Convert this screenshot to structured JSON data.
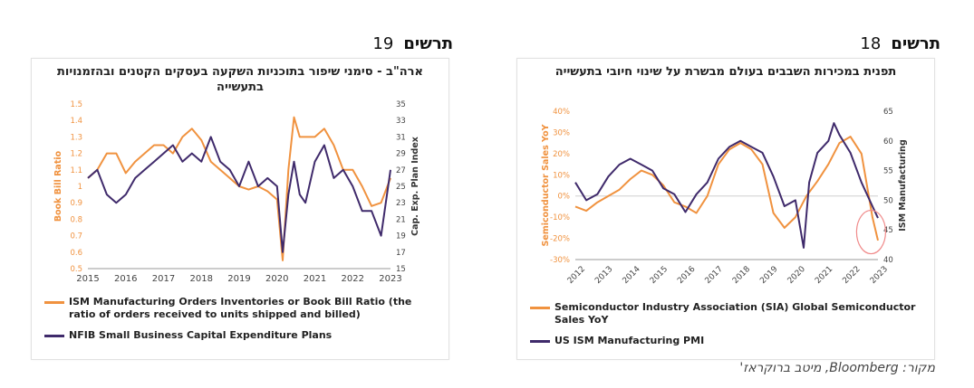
{
  "figures": [
    {
      "label": "תרשים",
      "number": "19",
      "title": "ארה\"ב - סימני שיפור בתוכניות השקעה בעסקים הקטנים ובהזמנויות בתעשייה",
      "legend": [
        "ISM Manufacturing Orders Inventories or Book Bill Ratio (the ratio of orders received to units shipped and billed)",
        "NFIB Small Business Capital Expenditure Plans"
      ]
    },
    {
      "label": "תרשים",
      "number": "18",
      "title": "תפנית במכירות השבבים בעולם מבשרת על שינוי חיובי בתעשייה",
      "legend": [
        "Semiconductor Industry Association (SIA) Global Semiconductor Sales YoY",
        "US ISM Manufacturing PMI"
      ]
    }
  ],
  "source": "מקור: Bloomberg, מיטב ברוקראז'",
  "colors": {
    "orange": "#f0923f",
    "purple": "#3f2a6b",
    "circle": "#f08a8a",
    "axis_orange": "#f0923f"
  },
  "chart_data": [
    {
      "type": "line",
      "x_ticks": [
        "2015",
        "2016",
        "2017",
        "2018",
        "2019",
        "2020",
        "2021",
        "2022",
        "2023"
      ],
      "xlim": [
        2015,
        2023
      ],
      "ylabel": "Book Bill Ratio",
      "ylim": [
        0.5,
        1.5
      ],
      "y_ticks": [
        "0.5",
        "0.6",
        "0.7",
        "0.8",
        "0.9",
        "1",
        "1.1",
        "1.2",
        "1.3",
        "1.4",
        "1.5"
      ],
      "y2label": "Cap. Exp. Plan Index",
      "y2lim": [
        15,
        35
      ],
      "y2_ticks": [
        "15",
        "17",
        "19",
        "21",
        "23",
        "25",
        "27",
        "29",
        "31",
        "33",
        "35"
      ],
      "series": [
        {
          "name": "ISM Manufacturing Orders Inventories or Book Bill Ratio (the ratio of orders received to units shipped and billed)",
          "axis": "left",
          "x": [
            2015.0,
            2015.25,
            2015.5,
            2015.75,
            2016.0,
            2016.25,
            2016.5,
            2016.75,
            2017.0,
            2017.25,
            2017.5,
            2017.75,
            2018.0,
            2018.25,
            2018.5,
            2018.75,
            2019.0,
            2019.25,
            2019.5,
            2019.75,
            2020.0,
            2020.15,
            2020.3,
            2020.45,
            2020.6,
            2020.75,
            2021.0,
            2021.25,
            2021.5,
            2021.75,
            2022.0,
            2022.25,
            2022.5,
            2022.75,
            2023.0
          ],
          "values": [
            1.05,
            1.1,
            1.2,
            1.2,
            1.08,
            1.15,
            1.2,
            1.25,
            1.25,
            1.2,
            1.3,
            1.35,
            1.28,
            1.15,
            1.1,
            1.05,
            1.0,
            0.98,
            1.0,
            0.97,
            0.92,
            0.55,
            1.1,
            1.42,
            1.3,
            1.3,
            1.3,
            1.35,
            1.25,
            1.1,
            1.1,
            1.0,
            0.88,
            0.9,
            1.05
          ]
        },
        {
          "name": "NFIB Small Business Capital Expenditure Plans",
          "axis": "right",
          "x": [
            2015.0,
            2015.25,
            2015.5,
            2015.75,
            2016.0,
            2016.25,
            2016.5,
            2016.75,
            2017.0,
            2017.25,
            2017.5,
            2017.75,
            2018.0,
            2018.25,
            2018.5,
            2018.75,
            2019.0,
            2019.25,
            2019.5,
            2019.75,
            2020.0,
            2020.15,
            2020.3,
            2020.45,
            2020.6,
            2020.75,
            2021.0,
            2021.25,
            2021.5,
            2021.75,
            2022.0,
            2022.25,
            2022.5,
            2022.75,
            2023.0
          ],
          "values": [
            26,
            27,
            24,
            23,
            24,
            26,
            27,
            28,
            29,
            30,
            28,
            29,
            28,
            31,
            28,
            27,
            25,
            28,
            25,
            26,
            25,
            17,
            24,
            28,
            24,
            23,
            28,
            30,
            26,
            27,
            25,
            22,
            22,
            19,
            27
          ]
        }
      ]
    },
    {
      "type": "line",
      "x_ticks": [
        "2012",
        "2013",
        "2014",
        "2015",
        "2016",
        "2017",
        "2018",
        "2019",
        "2020",
        "2021",
        "2022",
        "2023"
      ],
      "xlim": [
        2012,
        2023
      ],
      "ylabel": "Semiconductor Sales YoY",
      "ylim": [
        -30,
        40
      ],
      "y_ticks": [
        "-30%",
        "-20%",
        "-10%",
        "0%",
        "10%",
        "20%",
        "30%",
        "40%"
      ],
      "y2label": "ISM Manufacturing",
      "y2lim": [
        40,
        65
      ],
      "y2_ticks": [
        "40",
        "45",
        "50",
        "55",
        "60",
        "65"
      ],
      "series": [
        {
          "name": "Semiconductor Industry Association (SIA) Global Semiconductor Sales YoY",
          "axis": "left",
          "x": [
            2012.0,
            2012.4,
            2012.8,
            2013.2,
            2013.6,
            2014.0,
            2014.4,
            2014.8,
            2015.2,
            2015.6,
            2016.0,
            2016.4,
            2016.8,
            2017.2,
            2017.6,
            2018.0,
            2018.4,
            2018.8,
            2019.2,
            2019.6,
            2020.0,
            2020.4,
            2020.8,
            2021.2,
            2021.6,
            2022.0,
            2022.4,
            2022.8,
            2023.0
          ],
          "values": [
            -5,
            -7,
            -3,
            0,
            3,
            8,
            12,
            10,
            5,
            -3,
            -5,
            -8,
            0,
            15,
            22,
            25,
            22,
            15,
            -8,
            -15,
            -10,
            0,
            7,
            15,
            25,
            28,
            20,
            -10,
            -21
          ]
        },
        {
          "name": "US ISM Manufacturing PMI",
          "axis": "right",
          "x": [
            2012.0,
            2012.4,
            2012.8,
            2013.2,
            2013.6,
            2014.0,
            2014.4,
            2014.8,
            2015.2,
            2015.6,
            2016.0,
            2016.4,
            2016.8,
            2017.2,
            2017.6,
            2018.0,
            2018.4,
            2018.8,
            2019.2,
            2019.6,
            2020.0,
            2020.3,
            2020.5,
            2020.8,
            2021.2,
            2021.4,
            2021.6,
            2022.0,
            2022.4,
            2022.8,
            2023.0
          ],
          "values": [
            53,
            50,
            51,
            54,
            56,
            57,
            56,
            55,
            52,
            51,
            48,
            51,
            53,
            57,
            59,
            60,
            59,
            58,
            54,
            49,
            50,
            42,
            53,
            58,
            60,
            63,
            61,
            58,
            53,
            49,
            47
          ]
        }
      ]
    }
  ]
}
